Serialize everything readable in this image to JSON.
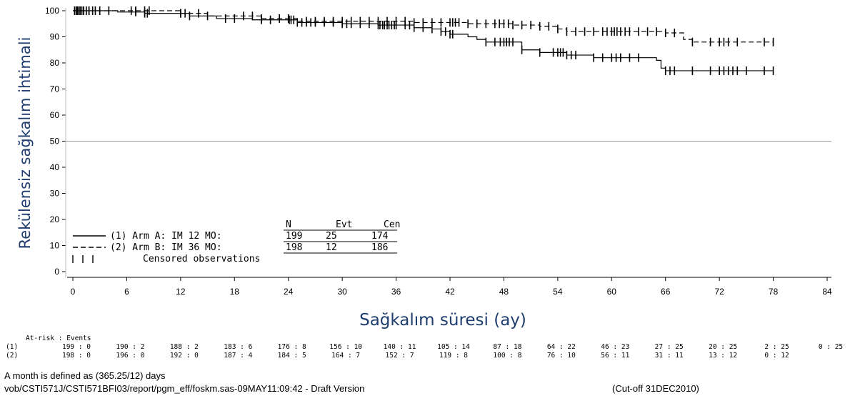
{
  "chart_data": {
    "type": "line",
    "xlabel": "Sağkalım süresi (ay)",
    "ylabel": "Rekülensiz sağkalım ihtimali",
    "xlim": [
      0,
      84
    ],
    "ylim": [
      0,
      100
    ],
    "xticks": [
      0,
      6,
      12,
      18,
      24,
      30,
      36,
      42,
      48,
      54,
      60,
      66,
      72,
      78,
      84
    ],
    "yticks": [
      0,
      10,
      20,
      30,
      40,
      50,
      60,
      70,
      80,
      90,
      100
    ],
    "reference_line_y": 50,
    "grid": false,
    "legend": {
      "placement": "bottom-left",
      "headers": [
        "N",
        "Evt",
        "Cen"
      ],
      "entries": [
        {
          "label": "(1) Arm A: IM 12 MO:",
          "n": "199",
          "evt": "25",
          "cen": "174",
          "style": "solid"
        },
        {
          "label": "(2) Arm B: IM 36 MO:",
          "n": "198",
          "evt": "12",
          "cen": "186",
          "style": "dashed"
        },
        {
          "label": "Censored observations",
          "style": "censor"
        }
      ]
    },
    "series": [
      {
        "name": "(1) Arm A: IM 12 MO:",
        "style": "solid",
        "steps": [
          [
            0,
            100
          ],
          [
            5,
            99.5
          ],
          [
            8,
            99
          ],
          [
            13,
            98
          ],
          [
            16,
            97
          ],
          [
            20,
            96.5
          ],
          [
            25,
            95.5
          ],
          [
            30,
            95
          ],
          [
            34,
            94.5
          ],
          [
            38,
            93.5
          ],
          [
            40,
            93
          ],
          [
            41,
            92
          ],
          [
            42,
            91
          ],
          [
            44,
            90
          ],
          [
            45,
            89
          ],
          [
            46,
            88
          ],
          [
            50,
            85
          ],
          [
            52,
            84
          ],
          [
            55,
            83
          ],
          [
            58,
            82
          ],
          [
            65,
            81
          ],
          [
            65.5,
            78
          ],
          [
            66,
            77
          ],
          [
            78,
            77
          ]
        ],
        "censored": [
          0.2,
          0.4,
          0.6,
          0.8,
          1,
          1.2,
          1.5,
          1.8,
          2.2,
          3,
          4,
          7,
          8,
          8.3,
          12,
          13,
          15,
          17,
          18,
          21,
          22,
          24.1,
          24.3,
          24.6,
          25,
          25.5,
          26,
          26.5,
          27,
          28,
          29,
          30,
          30.5,
          31,
          32,
          33,
          34,
          34.2,
          34.5,
          34.7,
          35,
          35.2,
          35.5,
          35.8,
          36,
          37,
          37.5,
          38,
          39,
          40,
          41,
          41.5,
          42,
          42.3,
          46,
          47,
          47.6,
          48,
          48.3,
          48.6,
          49,
          50,
          52,
          53.5,
          54,
          54.3,
          54.6,
          55,
          55.5,
          56,
          58,
          59,
          60,
          60.5,
          61,
          62,
          63,
          66,
          66.5,
          67,
          69,
          71,
          72,
          72.5,
          73,
          73.5,
          74,
          75,
          77,
          78
        ]
      },
      {
        "name": "(2) Arm B: IM 36 MO:",
        "style": "dashed",
        "steps": [
          [
            0,
            100
          ],
          [
            12,
            99
          ],
          [
            15,
            98
          ],
          [
            21,
            97
          ],
          [
            25,
            96
          ],
          [
            38,
            95.5
          ],
          [
            44,
            95
          ],
          [
            49,
            94.5
          ],
          [
            52,
            94
          ],
          [
            54,
            93
          ],
          [
            55,
            92
          ],
          [
            66,
            91.5
          ],
          [
            68,
            89
          ],
          [
            69,
            88
          ],
          [
            78,
            88
          ]
        ],
        "censored": [
          0.2,
          0.5,
          0.8,
          1.2,
          1.8,
          2.5,
          3,
          4,
          6.5,
          7,
          8,
          8.5,
          12,
          12.5,
          14,
          19,
          20,
          21,
          23,
          24,
          26,
          27,
          28,
          29,
          30,
          31,
          32,
          33,
          34,
          35,
          36,
          37,
          38,
          39,
          40,
          41,
          42,
          42.3,
          42.6,
          43,
          44,
          45,
          46,
          47,
          47.5,
          48,
          48.5,
          49,
          50,
          51,
          52,
          53,
          54,
          55,
          56,
          57,
          58,
          59,
          59.5,
          60,
          60.3,
          60.6,
          61,
          61.5,
          62,
          63,
          64,
          65,
          66,
          67,
          69,
          71,
          72,
          72.5,
          73,
          74,
          77,
          78
        ]
      }
    ],
    "at_risk": {
      "header": "At-risk : Events",
      "rows": [
        {
          "label": "(1)",
          "values": [
            "199 : 0",
            "190 : 2",
            "188 : 2",
            "183 : 6",
            "176 : 8",
            "156 : 10",
            "140 : 11",
            "105 : 14",
            "87 : 18",
            "64 : 22",
            "46 : 23",
            "27 : 25",
            "20 : 25",
            "2 : 25",
            "0 : 25"
          ]
        },
        {
          "label": "(2)",
          "values": [
            "198 : 0",
            "196 : 0",
            "192 : 0",
            "187 : 4",
            "184 : 5",
            "164 : 7",
            "152 : 7",
            "119 : 8",
            "100 : 8",
            "76 : 10",
            "56 : 11",
            "31 : 11",
            "13 : 12",
            "0 : 12",
            ""
          ]
        }
      ]
    }
  },
  "footer": {
    "line1": "A month is defined as (365.25/12) days",
    "line2": "vob/CSTI571J/CSTI571BFI03/report/pgm_eff/foskm.sas-09MAY11:09:42 - Draft Version",
    "cutoff": "(Cut-off 31DEC2010)"
  },
  "colors": {
    "ink": "#000000",
    "axis_title": "#1f3d6e",
    "ref_line": "#9a9a9a"
  }
}
